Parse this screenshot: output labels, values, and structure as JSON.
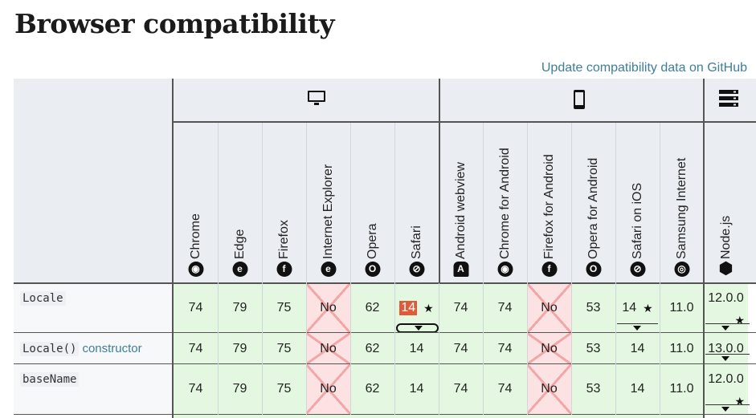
{
  "page_title": "Browser compatibility",
  "github_link": "Update compatibility data on GitHub",
  "platforms": [
    {
      "name": "desktop",
      "icon": "desktop-icon"
    },
    {
      "name": "mobile",
      "icon": "mobile-icon"
    },
    {
      "name": "server",
      "icon": "server-icon"
    }
  ],
  "browsers": [
    {
      "name": "Chrome",
      "icon": "chrome-icon"
    },
    {
      "name": "Edge",
      "icon": "edge-icon"
    },
    {
      "name": "Firefox",
      "icon": "firefox-icon"
    },
    {
      "name": "Internet Explorer",
      "icon": "ie-icon"
    },
    {
      "name": "Opera",
      "icon": "opera-icon"
    },
    {
      "name": "Safari",
      "icon": "safari-icon"
    },
    {
      "name": "Android webview",
      "icon": "android-icon"
    },
    {
      "name": "Chrome for Android",
      "icon": "chrome-icon"
    },
    {
      "name": "Firefox for Android",
      "icon": "firefox-icon"
    },
    {
      "name": "Opera for Android",
      "icon": "opera-icon"
    },
    {
      "name": "Safari on iOS",
      "icon": "safari-icon"
    },
    {
      "name": "Samsung Internet",
      "icon": "samsung-icon"
    },
    {
      "name": "Node.js",
      "icon": "nodejs-icon"
    }
  ],
  "features": [
    {
      "name": "Locale",
      "is_code": true,
      "suffix": "",
      "values": [
        "74",
        "79",
        "75",
        "No",
        "62",
        "14",
        "74",
        "74",
        "No",
        "53",
        "14",
        "11.0",
        "12.0.0"
      ]
    },
    {
      "name": "Locale()",
      "is_code": true,
      "suffix": "constructor",
      "values": [
        "74",
        "79",
        "75",
        "No",
        "62",
        "14",
        "74",
        "74",
        "No",
        "53",
        "14",
        "11.0",
        "13.0.0"
      ]
    },
    {
      "name": "baseName",
      "is_code": true,
      "suffix": "",
      "values": [
        "74",
        "79",
        "75",
        "No",
        "62",
        "14",
        "74",
        "74",
        "No",
        "53",
        "14",
        "11.0",
        "12.0.0"
      ]
    }
  ],
  "colors": {
    "yes": "#e4f8e1",
    "no": "#fce2e2",
    "link": "#3d7e9a",
    "flag": "#e05a3a"
  }
}
